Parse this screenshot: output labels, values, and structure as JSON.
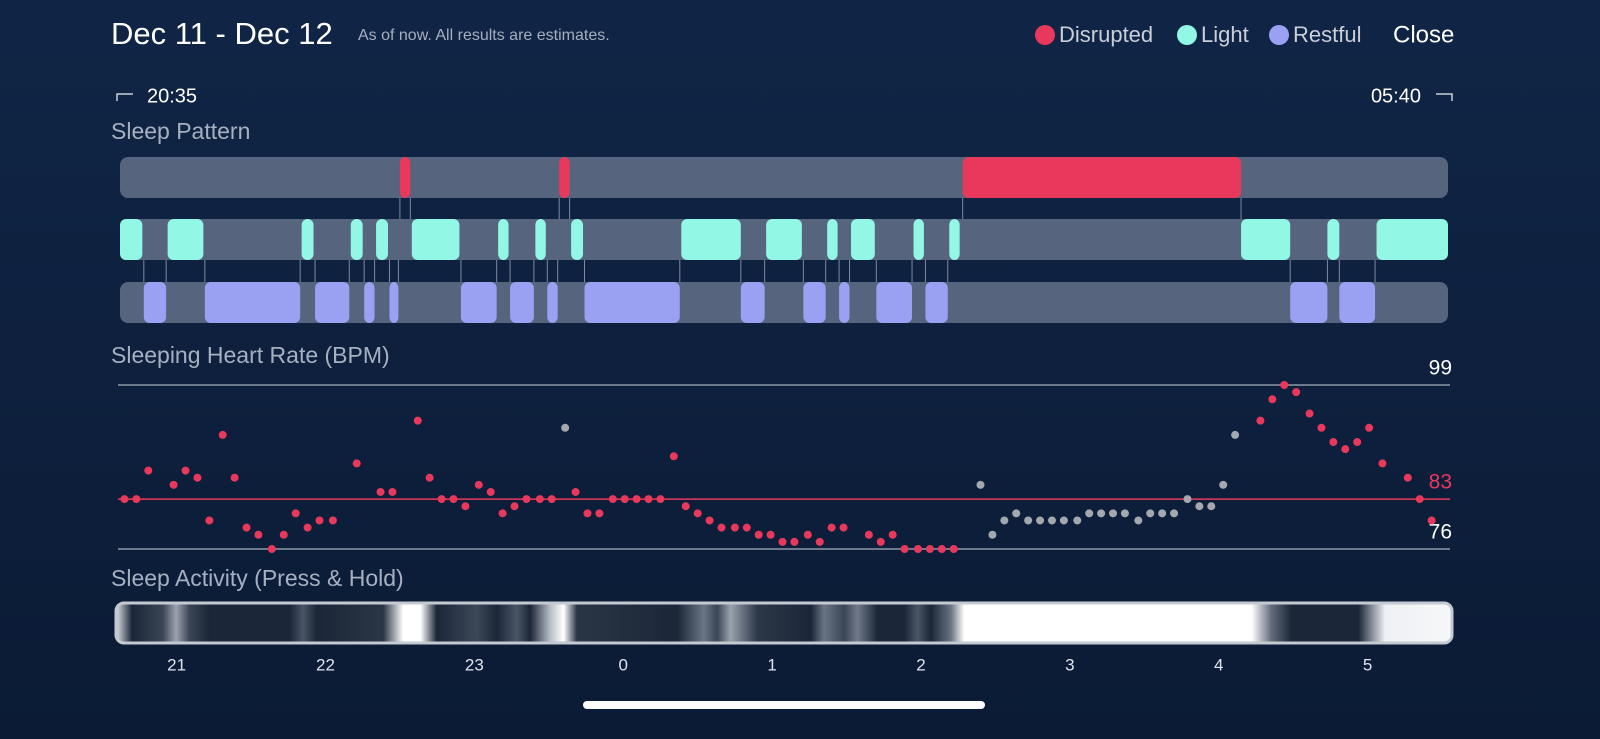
{
  "header": {
    "title": "Dec 11 - Dec 12",
    "subtitle": "As of now. All results are estimates.",
    "close": "Close"
  },
  "legend": [
    {
      "name": "Disrupted",
      "color": "#e8395d"
    },
    {
      "name": "Light",
      "color": "#92f7e4"
    },
    {
      "name": "Restful",
      "color": "#9aa1f3"
    }
  ],
  "time_range": {
    "start": "20:35",
    "end": "05:40"
  },
  "time_axis": {
    "xlim": [
      20.62,
      29.54
    ],
    "xticks": [
      21,
      22,
      23,
      {
        "value": 24,
        "label": "0"
      },
      {
        "value": 25,
        "label": "1"
      },
      {
        "value": 26,
        "label": "2"
      },
      {
        "value": 27,
        "label": "3"
      },
      {
        "value": 28,
        "label": "4"
      },
      {
        "value": 29,
        "label": "5"
      }
    ]
  },
  "sleep_pattern": {
    "title": "Sleep Pattern",
    "rows": [
      {
        "segments": [
          [
            22.5,
            22.57
          ],
          [
            23.57,
            23.64
          ],
          [
            26.28,
            28.15
          ]
        ]
      },
      {
        "segments": [
          [
            20.62,
            20.77
          ],
          [
            20.94,
            21.18
          ],
          [
            21.84,
            21.92
          ],
          [
            22.17,
            22.25
          ],
          [
            22.34,
            22.42
          ],
          [
            22.58,
            22.9
          ],
          [
            23.16,
            23.23
          ],
          [
            23.41,
            23.48
          ],
          [
            23.65,
            23.73
          ],
          [
            24.39,
            24.79
          ],
          [
            24.96,
            25.2
          ],
          [
            25.37,
            25.44
          ],
          [
            25.53,
            25.69
          ],
          [
            25.95,
            26.02
          ],
          [
            26.19,
            26.26
          ],
          [
            28.15,
            28.48
          ],
          [
            28.73,
            28.81
          ],
          [
            29.06,
            29.54
          ]
        ]
      },
      {
        "segments": [
          [
            20.78,
            20.93
          ],
          [
            21.19,
            21.83
          ],
          [
            21.93,
            22.16
          ],
          [
            22.26,
            22.33
          ],
          [
            22.43,
            22.49
          ],
          [
            22.91,
            23.15
          ],
          [
            23.24,
            23.4
          ],
          [
            23.49,
            23.56
          ],
          [
            23.74,
            24.38
          ],
          [
            24.79,
            24.95
          ],
          [
            25.21,
            25.36
          ],
          [
            25.45,
            25.52
          ],
          [
            25.7,
            25.94
          ],
          [
            26.03,
            26.18
          ],
          [
            28.48,
            28.73
          ],
          [
            28.81,
            29.05
          ]
        ]
      }
    ]
  },
  "heart_rate": {
    "type": "scatter",
    "title": "Sleeping Heart Rate (BPM)",
    "ylim": [
      76,
      99
    ],
    "yticks": [
      76,
      83,
      99
    ],
    "ytick_colors": [
      "#8d97a8",
      "#e8395d",
      "#8d97a8"
    ],
    "series": [
      {
        "color": "#e8395d",
        "x": [
          20.65,
          20.73,
          20.81,
          20.98,
          21.06,
          21.14,
          21.22,
          21.31,
          21.39,
          21.47,
          21.55,
          21.64,
          21.72,
          21.8,
          21.88,
          21.96,
          22.05,
          22.21,
          22.37,
          22.45,
          22.62,
          22.7,
          22.78,
          22.86,
          22.94,
          23.03,
          23.11,
          23.19,
          23.27,
          23.35,
          23.44,
          23.52,
          23.68,
          23.76,
          23.84,
          23.93,
          24.01,
          24.09,
          24.17,
          24.25,
          24.34,
          24.42,
          24.5,
          24.58,
          24.66,
          24.75,
          24.83,
          24.91,
          24.99,
          25.07,
          25.15,
          25.24,
          25.32,
          25.4,
          25.48,
          25.65,
          25.73,
          25.81,
          25.89,
          25.98,
          26.06,
          26.14,
          26.22,
          28.28,
          28.36,
          28.44,
          28.52,
          28.61,
          28.69,
          28.77,
          28.85,
          28.93,
          29.01,
          29.1,
          29.27,
          29.35,
          29.43
        ],
        "values": [
          83,
          83,
          87,
          85,
          87,
          86,
          80,
          92,
          86,
          79,
          78,
          76,
          78,
          81,
          79,
          80,
          80,
          88,
          84,
          84,
          94,
          86,
          83,
          83,
          82,
          85,
          84,
          81,
          82,
          83,
          83,
          83,
          84,
          81,
          81,
          83,
          83,
          83,
          83,
          83,
          89,
          82,
          81,
          80,
          79,
          79,
          79,
          78,
          78,
          77,
          77,
          78,
          77,
          79,
          79,
          78,
          77,
          78,
          76,
          76,
          76,
          76,
          76,
          94,
          97,
          99,
          98,
          95,
          93,
          91,
          90,
          91,
          93,
          88,
          86,
          83,
          80
        ]
      },
      {
        "color": "#a3a7ae",
        "x": [
          23.61,
          26.4,
          26.48,
          26.56,
          26.64,
          26.72,
          26.8,
          26.88,
          26.96,
          27.05,
          27.13,
          27.21,
          27.29,
          27.37,
          27.46,
          27.54,
          27.62,
          27.7,
          27.79,
          27.87,
          27.95,
          28.03,
          28.11
        ],
        "values": [
          93,
          85,
          78,
          80,
          81,
          80,
          80,
          80,
          80,
          80,
          81,
          81,
          81,
          81,
          80,
          81,
          81,
          81,
          83,
          82,
          82,
          85,
          92
        ]
      }
    ]
  },
  "sleep_activity": {
    "title": "Sleep Activity (Press & Hold)"
  }
}
